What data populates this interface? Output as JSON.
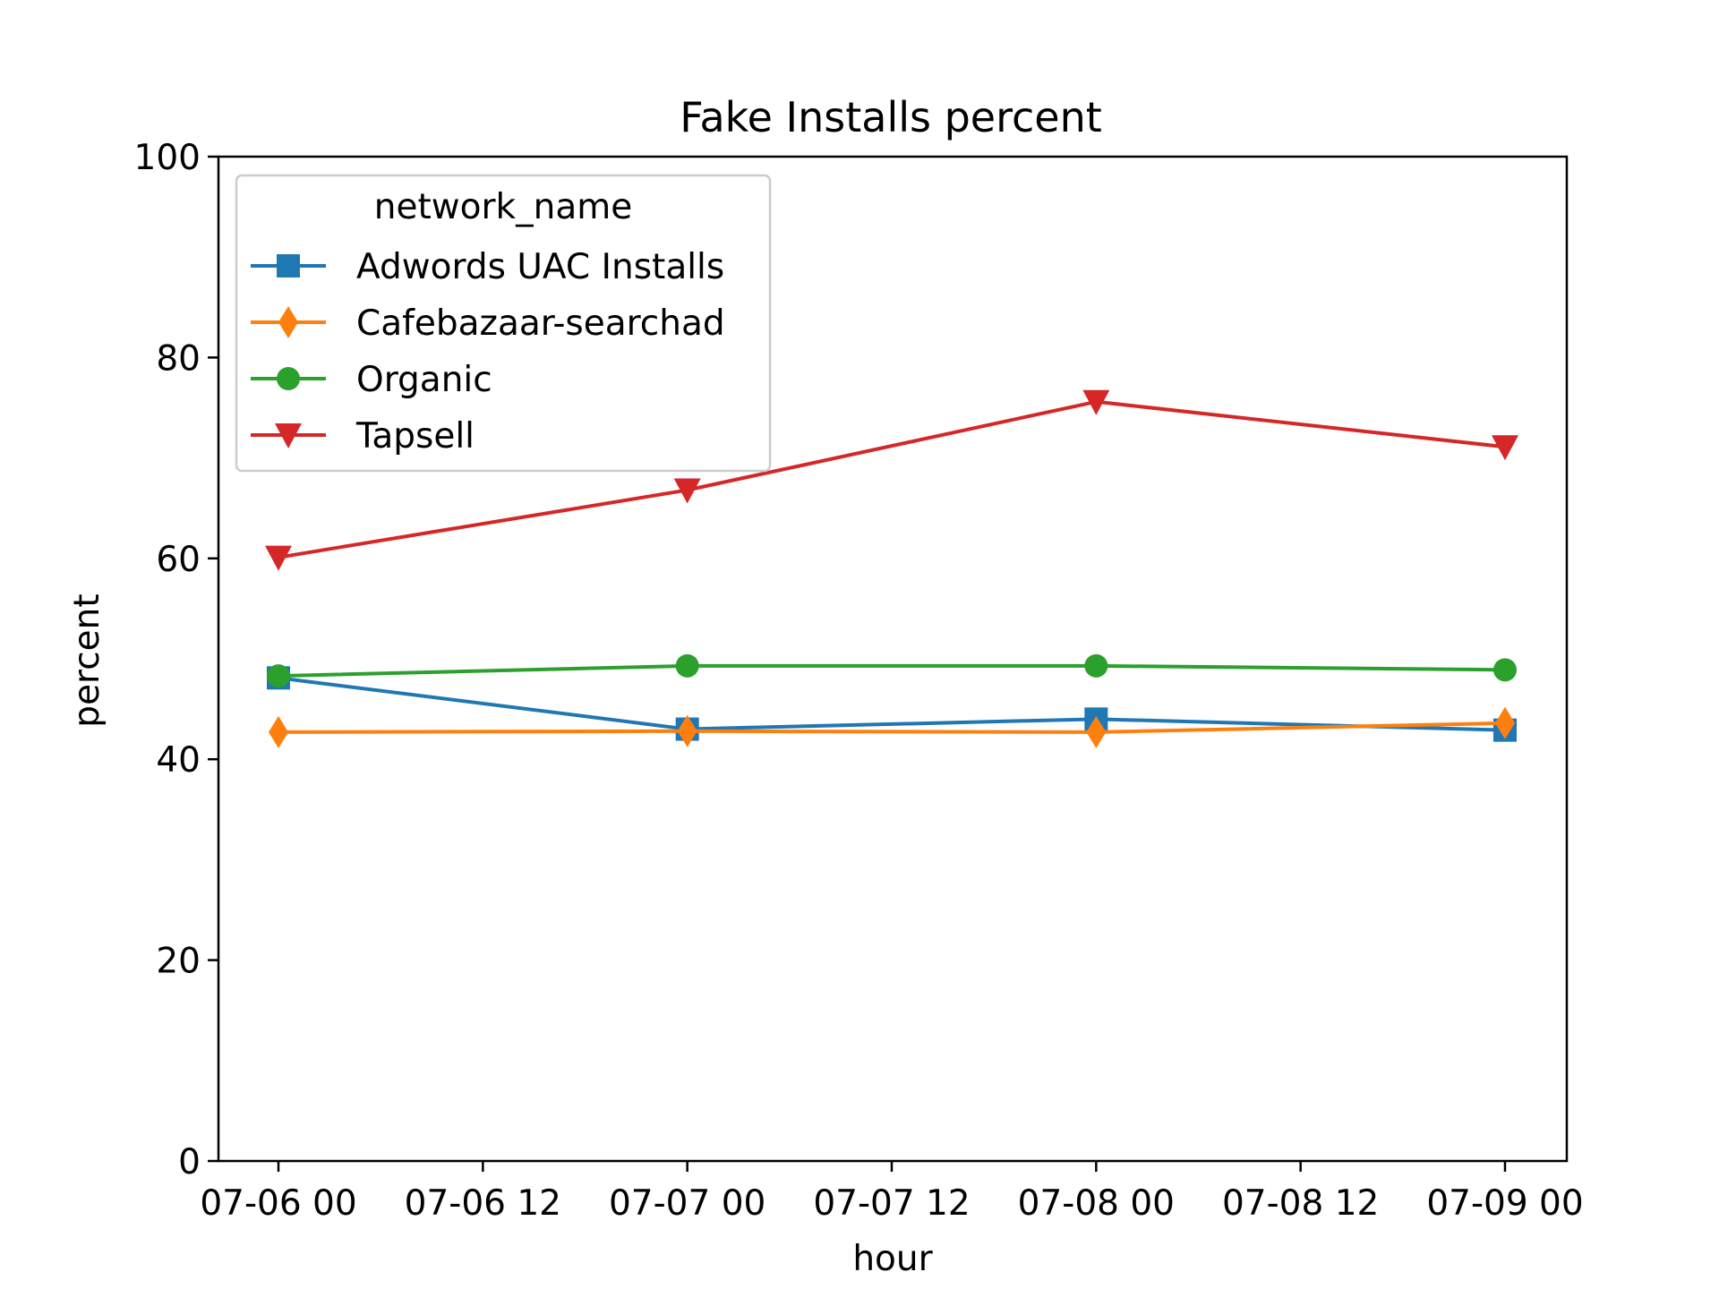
{
  "chart_data": {
    "type": "line",
    "title": "Fake Installs percent",
    "xlabel": "hour",
    "ylabel": "percent",
    "ylim": [
      0,
      100
    ],
    "y_ticks": [
      0,
      20,
      40,
      60,
      80,
      100
    ],
    "y_tick_labels": [
      "0",
      "20",
      "40",
      "60",
      "80",
      "100"
    ],
    "x_ticks": [
      "07-06 00",
      "07-06 12",
      "07-07 00",
      "07-07 12",
      "07-08 00",
      "07-08 12",
      "07-09 00"
    ],
    "x": [
      "07-06 00",
      "07-07 00",
      "07-08 00",
      "07-09 00"
    ],
    "grid": false,
    "legend": {
      "title": "network_name",
      "placement": "upper-left"
    },
    "series": [
      {
        "name": "Adwords UAC Installs",
        "color": "#1f77b4",
        "marker": "square",
        "values": [
          48.1,
          43.0,
          44.0,
          42.9
        ]
      },
      {
        "name": "Cafebazaar-searchad",
        "color": "#ff7f0e",
        "marker": "diamond",
        "values": [
          42.7,
          42.8,
          42.7,
          43.6
        ]
      },
      {
        "name": "Organic",
        "color": "#2ca02c",
        "marker": "circle",
        "values": [
          48.3,
          49.3,
          49.3,
          48.9
        ]
      },
      {
        "name": "Tapsell",
        "color": "#d62728",
        "marker": "triangle-down",
        "values": [
          60.1,
          66.8,
          75.6,
          71.1
        ]
      }
    ]
  }
}
